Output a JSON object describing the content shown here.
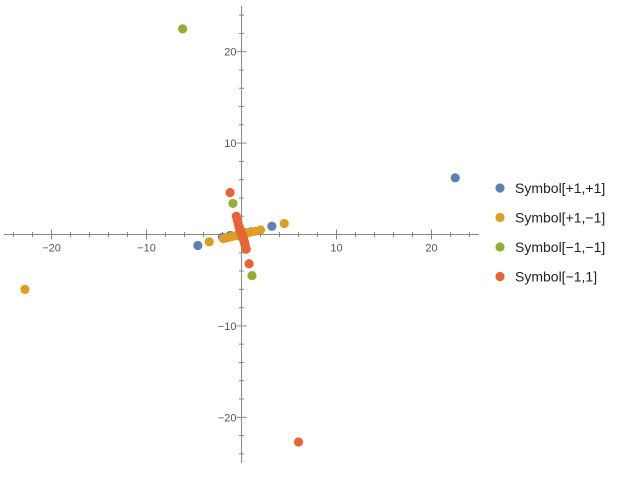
{
  "chart_data": {
    "type": "scatter",
    "xlim": [
      -25,
      25
    ],
    "ylim": [
      -25,
      25
    ],
    "x_ticks": [
      -20,
      -10,
      10,
      20
    ],
    "y_ticks": [
      -20,
      -10,
      10,
      20
    ],
    "x_tick_labels": [
      "−20",
      "−10",
      "10",
      "20"
    ],
    "y_tick_labels": [
      "−20",
      "−10",
      "10",
      "20"
    ],
    "grid": false,
    "legend_placement": "right",
    "series": [
      {
        "name": "Symbol[+1,+1]",
        "color": "#5E81B5",
        "points": [
          [
            22.5,
            6.2
          ],
          [
            3.2,
            0.9
          ],
          [
            -4.6,
            -1.2
          ],
          [
            -2.0,
            -0.3
          ],
          [
            -1.2,
            -0.1
          ],
          [
            0.5,
            0.2
          ],
          [
            1.0,
            0.3
          ],
          [
            -0.5,
            -0.1
          ]
        ]
      },
      {
        "name": "Symbol[+1,−1]",
        "color": "#E19C24",
        "points": [
          [
            -22.8,
            -6.0
          ],
          [
            4.5,
            1.2
          ],
          [
            -3.4,
            -0.8
          ],
          [
            2.0,
            0.5
          ],
          [
            1.4,
            0.35
          ],
          [
            0.9,
            0.25
          ],
          [
            0.5,
            0.15
          ],
          [
            0.1,
            0.05
          ],
          [
            -0.3,
            -0.05
          ],
          [
            -0.7,
            -0.15
          ],
          [
            -1.1,
            -0.25
          ],
          [
            -1.5,
            -0.35
          ],
          [
            -1.9,
            -0.45
          ]
        ]
      },
      {
        "name": "Symbol[−1,−1]",
        "color": "#8FB032",
        "points": [
          [
            -6.2,
            22.5
          ],
          [
            -0.9,
            3.4
          ],
          [
            1.1,
            -4.5
          ],
          [
            0.3,
            -0.9
          ],
          [
            0.1,
            -0.4
          ],
          [
            -0.1,
            0.2
          ],
          [
            -0.2,
            0.6
          ],
          [
            -0.05,
            -0.1
          ]
        ]
      },
      {
        "name": "Symbol[−1,1]",
        "color": "#EB6235",
        "points": [
          [
            6.0,
            -22.7
          ],
          [
            -1.2,
            4.6
          ],
          [
            0.8,
            -3.2
          ],
          [
            -0.55,
            2.0
          ],
          [
            -0.45,
            1.6
          ],
          [
            -0.35,
            1.2
          ],
          [
            -0.25,
            0.8
          ],
          [
            -0.1,
            0.4
          ],
          [
            0.05,
            0.0
          ],
          [
            0.2,
            -0.4
          ],
          [
            0.3,
            -0.8
          ],
          [
            0.4,
            -1.2
          ],
          [
            0.5,
            -1.6
          ],
          [
            -0.15,
            0.6
          ],
          [
            0.1,
            -0.2
          ]
        ]
      }
    ]
  }
}
